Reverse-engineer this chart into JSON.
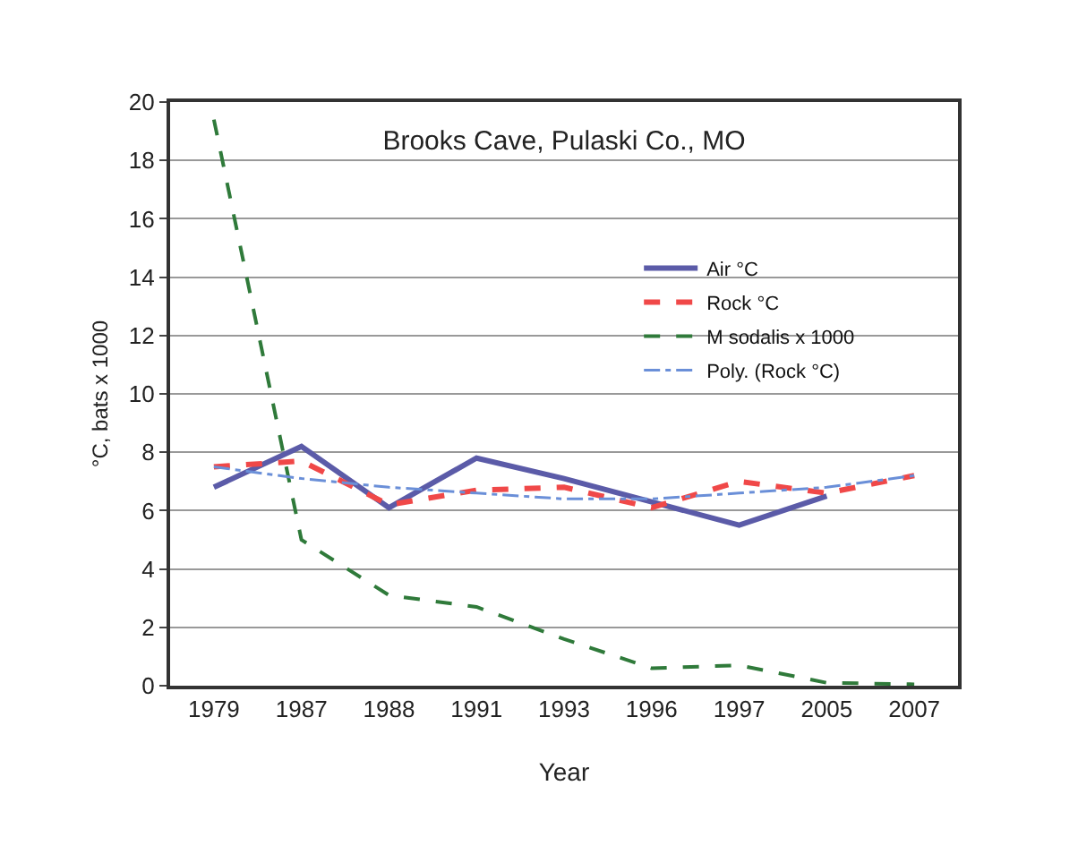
{
  "chart_data": {
    "type": "line",
    "title": "Brooks Cave, Pulaski Co., MO",
    "xlabel": "Year",
    "ylabel": "°C, bats x 1000",
    "categories": [
      "1979",
      "1987",
      "1988",
      "1991",
      "1993",
      "1996",
      "1997",
      "2005",
      "2007"
    ],
    "series": [
      {
        "name": "Air °C",
        "color": "#5b5ba8",
        "line_style": "solid",
        "values": [
          6.8,
          8.2,
          6.1,
          7.8,
          7.1,
          6.3,
          5.5,
          6.5,
          null
        ]
      },
      {
        "name": "Rock °C",
        "color": "#f04848",
        "line_style": "dashed",
        "values": [
          7.5,
          7.7,
          6.2,
          6.7,
          6.8,
          6.1,
          7.0,
          6.6,
          7.2
        ]
      },
      {
        "name": "M sodalis x 1000",
        "color": "#2f7a3a",
        "line_style": "dashed",
        "values": [
          19.4,
          5.0,
          3.1,
          2.7,
          1.6,
          0.6,
          0.7,
          0.1,
          0.05
        ]
      },
      {
        "name": "Poly. (Rock °C)",
        "color": "#6a8fd8",
        "line_style": "dotted",
        "values": [
          7.5,
          7.1,
          6.8,
          6.6,
          6.4,
          6.4,
          6.6,
          6.8,
          7.2
        ]
      }
    ],
    "ylim": [
      0,
      20
    ],
    "yticks": [
      0,
      2,
      4,
      6,
      8,
      10,
      12,
      14,
      16,
      18,
      20
    ],
    "grid": "y",
    "legend": "top right",
    "marker": "none"
  }
}
